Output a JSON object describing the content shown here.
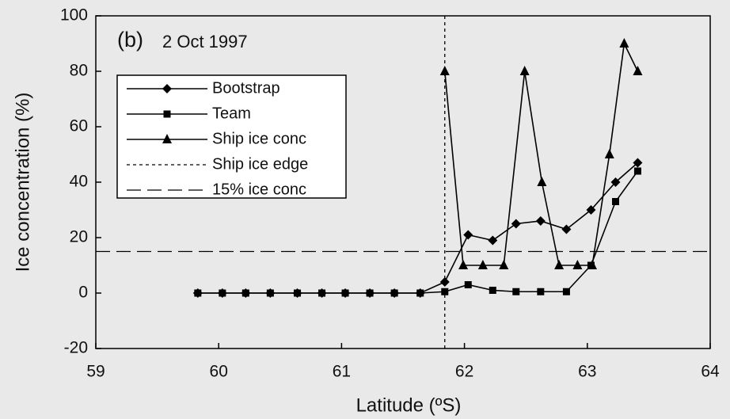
{
  "chart_data": {
    "type": "line",
    "panel_label": "(b)",
    "title": "2 Oct 1997",
    "x_label": "Latitude (ºS)",
    "y_label": "Ice concentration (%)",
    "xlim": [
      59,
      64
    ],
    "ylim": [
      -20,
      100
    ],
    "xticks": [
      59,
      60,
      61,
      62,
      63,
      64
    ],
    "yticks": [
      -20,
      0,
      20,
      40,
      60,
      80,
      100
    ],
    "series": [
      {
        "name": "Bootstrap",
        "color": "#000000",
        "marker": "diamond",
        "x": [
          59.83,
          60.03,
          60.22,
          60.42,
          60.64,
          60.84,
          61.03,
          61.23,
          61.43,
          61.64,
          61.84,
          62.03,
          62.23,
          62.42,
          62.62,
          62.83,
          63.03,
          63.23,
          63.41
        ],
        "values": [
          0,
          0,
          0,
          0,
          0,
          0,
          0,
          0,
          0,
          0,
          4,
          21,
          19,
          25,
          26,
          23,
          30,
          40,
          47
        ]
      },
      {
        "name": "Team",
        "color": "#000000",
        "marker": "square",
        "x": [
          59.83,
          60.03,
          60.22,
          60.42,
          60.64,
          60.84,
          61.03,
          61.23,
          61.43,
          61.64,
          61.84,
          62.03,
          62.23,
          62.42,
          62.62,
          62.83,
          63.03,
          63.23,
          63.41
        ],
        "values": [
          0,
          0,
          0,
          0,
          0,
          0,
          0,
          0,
          0,
          0,
          0.5,
          3,
          1,
          0.5,
          0.5,
          0.5,
          10,
          33,
          44
        ]
      },
      {
        "name": "Ship ice conc",
        "color": "#000000",
        "marker": "triangle",
        "x": [
          61.84,
          61.99,
          62.15,
          62.32,
          62.49,
          62.63,
          62.77,
          62.92,
          63.04,
          63.18,
          63.3,
          63.41
        ],
        "values": [
          80,
          10,
          10,
          10,
          80,
          40,
          10,
          10,
          10,
          50,
          90,
          80
        ]
      }
    ],
    "reference_lines": [
      {
        "name": "Ship ice edge",
        "x": 61.84,
        "dash": "4,4"
      },
      {
        "name": "15% ice conc",
        "y": 15,
        "dash": "18,8"
      }
    ]
  }
}
